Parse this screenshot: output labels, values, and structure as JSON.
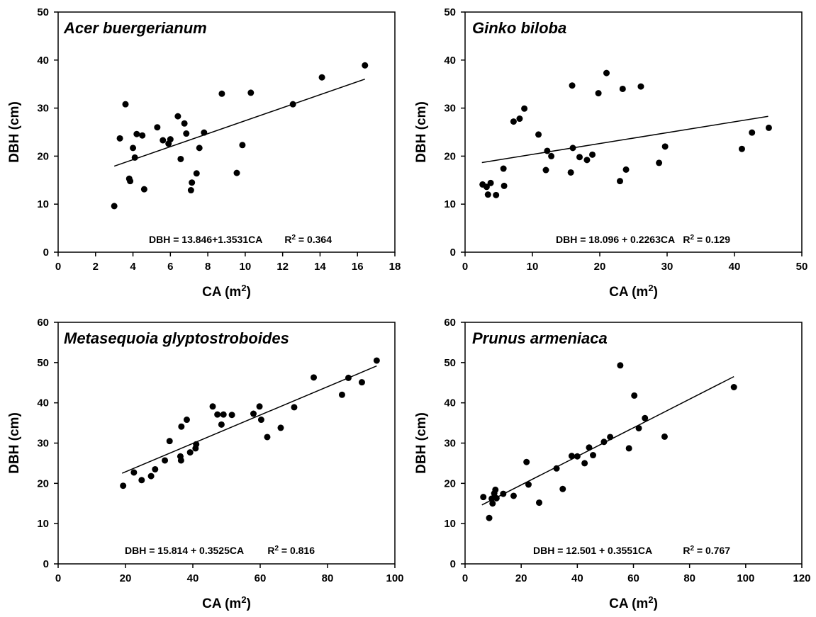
{
  "chart_data": [
    {
      "type": "scatter",
      "title": "Acer buergerianum",
      "xlabel": "CA (m",
      "xlabel_sup": "2",
      "xlabel_close": ")",
      "ylabel": "DBH (cm)",
      "xlim": [
        0,
        18
      ],
      "ylim": [
        0,
        50
      ],
      "xticks": [
        0,
        2,
        4,
        6,
        8,
        10,
        12,
        14,
        16,
        18
      ],
      "yticks": [
        0,
        10,
        20,
        30,
        40,
        50
      ],
      "grid": false,
      "equation": "DBH = 13.846+1.3531CA",
      "r2_label": "R",
      "r2_sup": "2",
      "r2_value": " = 0.364",
      "fit": {
        "intercept": 13.846,
        "slope": 1.3531,
        "x_range": [
          3.0,
          16.4
        ]
      },
      "points": [
        [
          3.0,
          9.6
        ],
        [
          3.3,
          23.7
        ],
        [
          3.6,
          30.8
        ],
        [
          3.8,
          15.3
        ],
        [
          3.85,
          14.8
        ],
        [
          4.0,
          21.7
        ],
        [
          4.1,
          19.7
        ],
        [
          4.2,
          24.6
        ],
        [
          4.5,
          24.3
        ],
        [
          4.6,
          13.1
        ],
        [
          5.3,
          26.0
        ],
        [
          5.6,
          23.3
        ],
        [
          5.9,
          22.6
        ],
        [
          6.0,
          23.5
        ],
        [
          6.4,
          28.3
        ],
        [
          6.55,
          19.4
        ],
        [
          6.75,
          26.8
        ],
        [
          6.85,
          24.7
        ],
        [
          7.1,
          12.9
        ],
        [
          7.15,
          14.5
        ],
        [
          7.4,
          16.4
        ],
        [
          7.55,
          21.7
        ],
        [
          7.8,
          24.9
        ],
        [
          8.75,
          33.0
        ],
        [
          9.55,
          16.5
        ],
        [
          9.85,
          22.3
        ],
        [
          10.3,
          33.2
        ],
        [
          12.55,
          30.8
        ],
        [
          14.1,
          36.4
        ],
        [
          16.4,
          38.9
        ]
      ]
    },
    {
      "type": "scatter",
      "title": "Ginko biloba",
      "xlabel": "CA (m",
      "xlabel_sup": "2",
      "xlabel_close": ")",
      "ylabel": "DBH (cm)",
      "xlim": [
        0,
        50
      ],
      "ylim": [
        0,
        50
      ],
      "xticks": [
        0,
        10,
        20,
        30,
        40,
        50
      ],
      "yticks": [
        0,
        10,
        20,
        30,
        40,
        50
      ],
      "grid": false,
      "equation": "DBH = 18.096 + 0.2263CA",
      "r2_label": "R",
      "r2_sup": "2",
      "r2_value": " = 0.129",
      "fit": {
        "intercept": 18.096,
        "slope": 0.2263,
        "x_range": [
          2.5,
          45.0
        ]
      },
      "points": [
        [
          2.6,
          14.1
        ],
        [
          3.2,
          13.6
        ],
        [
          3.4,
          12.0
        ],
        [
          3.8,
          14.4
        ],
        [
          4.6,
          11.9
        ],
        [
          5.7,
          17.4
        ],
        [
          5.8,
          13.8
        ],
        [
          7.2,
          27.2
        ],
        [
          8.1,
          27.8
        ],
        [
          8.8,
          29.9
        ],
        [
          10.9,
          24.5
        ],
        [
          12.0,
          17.1
        ],
        [
          12.2,
          21.1
        ],
        [
          12.8,
          20.0
        ],
        [
          15.7,
          16.6
        ],
        [
          15.9,
          34.7
        ],
        [
          16.0,
          21.7
        ],
        [
          17.0,
          19.8
        ],
        [
          18.1,
          19.2
        ],
        [
          18.9,
          20.3
        ],
        [
          19.8,
          33.1
        ],
        [
          21.0,
          37.3
        ],
        [
          23.0,
          14.8
        ],
        [
          23.4,
          34.0
        ],
        [
          23.9,
          17.2
        ],
        [
          26.1,
          34.5
        ],
        [
          28.8,
          18.6
        ],
        [
          29.7,
          22.0
        ],
        [
          41.1,
          21.5
        ],
        [
          42.6,
          24.9
        ],
        [
          45.1,
          25.9
        ]
      ]
    },
    {
      "type": "scatter",
      "title": "Metasequoia glyptostroboides",
      "xlabel": "CA (m",
      "xlabel_sup": "2",
      "xlabel_close": ")",
      "ylabel": "DBH (cm)",
      "xlim": [
        0,
        100
      ],
      "ylim": [
        0,
        60
      ],
      "xticks": [
        0,
        20,
        40,
        60,
        80,
        100
      ],
      "yticks": [
        0,
        10,
        20,
        30,
        40,
        50,
        60
      ],
      "grid": false,
      "equation": "DBH = 15.814 + 0.3525CA",
      "r2_label": "R",
      "r2_sup": "2",
      "r2_value": " = 0.816",
      "fit": {
        "intercept": 15.814,
        "slope": 0.3525,
        "x_range": [
          19.0,
          94.6
        ]
      },
      "points": [
        [
          19.3,
          19.4
        ],
        [
          22.5,
          22.7
        ],
        [
          24.8,
          20.8
        ],
        [
          27.6,
          21.8
        ],
        [
          28.8,
          23.5
        ],
        [
          31.7,
          25.7
        ],
        [
          33.1,
          30.5
        ],
        [
          36.3,
          26.7
        ],
        [
          36.5,
          25.7
        ],
        [
          36.6,
          34.1
        ],
        [
          38.2,
          35.8
        ],
        [
          39.2,
          27.7
        ],
        [
          40.8,
          28.7
        ],
        [
          41.0,
          29.7
        ],
        [
          45.9,
          39.1
        ],
        [
          47.3,
          37.1
        ],
        [
          48.5,
          34.6
        ],
        [
          49.1,
          37.1
        ],
        [
          51.6,
          37.0
        ],
        [
          58.0,
          37.3
        ],
        [
          59.8,
          39.1
        ],
        [
          60.3,
          35.8
        ],
        [
          62.1,
          31.5
        ],
        [
          66.1,
          33.8
        ],
        [
          70.1,
          38.9
        ],
        [
          75.9,
          46.3
        ],
        [
          84.3,
          42.0
        ],
        [
          86.2,
          46.2
        ],
        [
          90.2,
          45.1
        ],
        [
          94.6,
          50.5
        ]
      ]
    },
    {
      "type": "scatter",
      "title": "Prunus armeniaca",
      "xlabel": "CA (m",
      "xlabel_sup": "2",
      "xlabel_close": ")",
      "ylabel": "DBH (cm)",
      "xlim": [
        0,
        120
      ],
      "ylim": [
        0,
        60
      ],
      "xticks": [
        0,
        20,
        40,
        60,
        80,
        100,
        120
      ],
      "yticks": [
        0,
        10,
        20,
        30,
        40,
        50,
        60
      ],
      "grid": false,
      "equation": "DBH = 12.501 + 0.3551CA",
      "r2_label": "R",
      "r2_sup": "2",
      "r2_value": " = 0.767",
      "fit": {
        "intercept": 12.501,
        "slope": 0.3551,
        "x_range": [
          6.0,
          95.8
        ]
      },
      "points": [
        [
          6.5,
          16.6
        ],
        [
          8.6,
          11.4
        ],
        [
          9.5,
          16.2
        ],
        [
          9.8,
          15.0
        ],
        [
          10.4,
          17.5
        ],
        [
          10.8,
          18.4
        ],
        [
          11.2,
          16.3
        ],
        [
          13.6,
          17.4
        ],
        [
          17.3,
          16.9
        ],
        [
          21.9,
          25.3
        ],
        [
          22.6,
          19.7
        ],
        [
          26.4,
          15.2
        ],
        [
          32.6,
          23.7
        ],
        [
          34.8,
          18.6
        ],
        [
          38.0,
          26.8
        ],
        [
          40.0,
          26.7
        ],
        [
          42.6,
          25.0
        ],
        [
          44.2,
          28.9
        ],
        [
          45.6,
          27.0
        ],
        [
          49.5,
          30.3
        ],
        [
          51.7,
          31.5
        ],
        [
          55.3,
          49.3
        ],
        [
          58.4,
          28.7
        ],
        [
          60.3,
          41.8
        ],
        [
          61.9,
          33.7
        ],
        [
          64.1,
          36.2
        ],
        [
          71.1,
          31.6
        ],
        [
          95.8,
          43.9
        ]
      ]
    }
  ]
}
